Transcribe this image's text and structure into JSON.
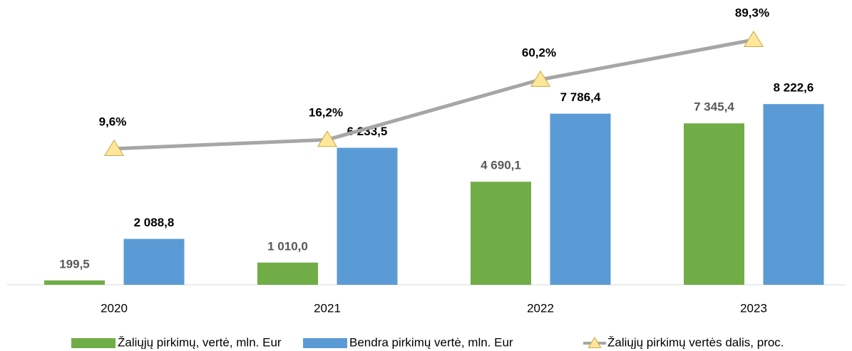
{
  "chart_data": {
    "type": "bar",
    "categories": [
      "2020",
      "2021",
      "2022",
      "2023"
    ],
    "series": [
      {
        "name": "Žaliųjų pirkimų, vertė, mln. Eur",
        "color": "#70ad47",
        "values": [
          199.5,
          1010.0,
          4690.1,
          7345.4
        ],
        "value_labels": [
          "199,5",
          "1 010,0",
          "4 690,1",
          "7 345,4"
        ],
        "label_color": "#595959"
      },
      {
        "name": "Bendra pirkimų vertė, mln. Eur",
        "color": "#5b9bd5",
        "values": [
          2088.8,
          6233.5,
          7786.4,
          8222.6
        ],
        "value_labels": [
          "2 088,8",
          "6 233,5",
          "7 786,4",
          "8 222,6"
        ],
        "label_color": "#000000"
      },
      {
        "name": "Žaliųjų pirkimų vertės dalis, proc.",
        "type": "line",
        "axis": "y2",
        "color": "#a6a6a6",
        "marker_color": "#ffe699",
        "values": [
          9.6,
          16.2,
          60.2,
          89.3
        ],
        "value_labels": [
          "9,6%",
          "16,2%",
          "60,2%",
          "89,3%"
        ],
        "label_color": "#000000"
      }
    ],
    "ylim": [
      0,
      11500
    ],
    "y2lim": [
      -90,
      95
    ],
    "grid": false
  }
}
